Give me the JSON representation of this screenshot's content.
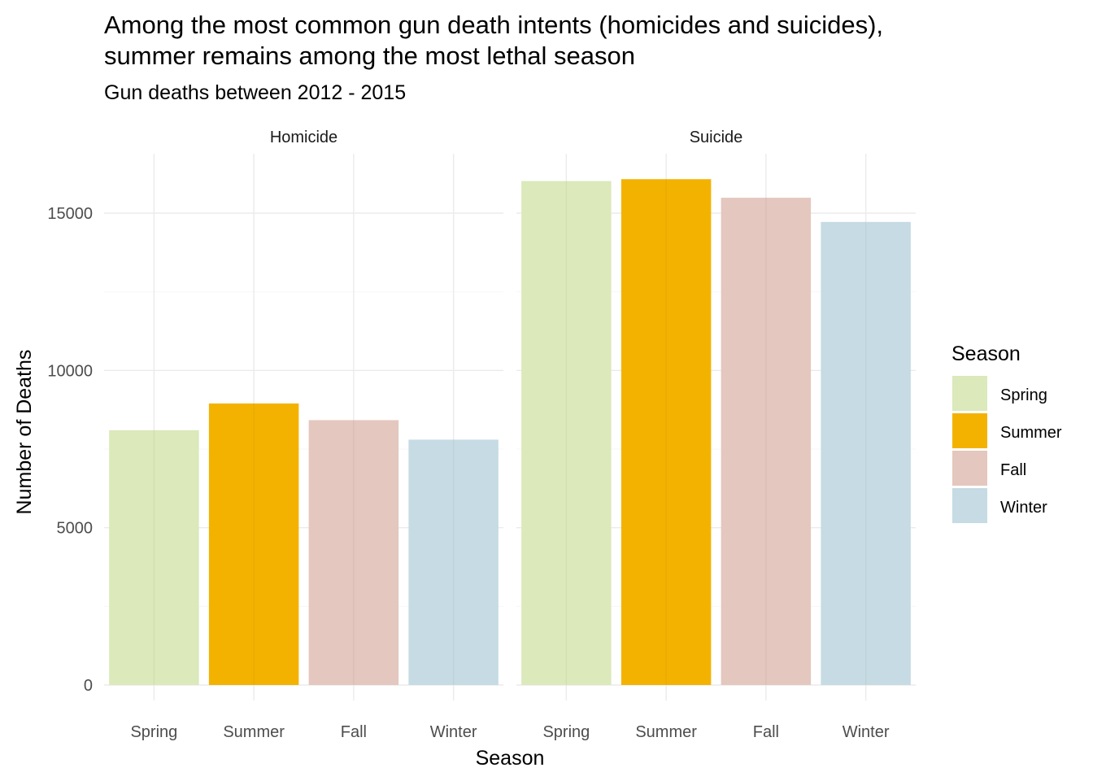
{
  "chart_data": {
    "type": "bar",
    "title_lines": [
      "Among the most common gun death intents (homicides and suicides),",
      "summer remains among the most lethal season"
    ],
    "subtitle": "Gun deaths between 2012 - 2015",
    "xlabel": "Season",
    "ylabel": "Number of Deaths",
    "ylim": [
      0,
      17000
    ],
    "yticks": [
      0,
      5000,
      10000,
      15000
    ],
    "grid": true,
    "legend": {
      "title": "Season",
      "position": "right",
      "entries": [
        "Spring",
        "Summer",
        "Fall",
        "Winter"
      ]
    },
    "categories": [
      "Spring",
      "Summer",
      "Fall",
      "Winter"
    ],
    "colors": {
      "Spring": "#dbe9bb",
      "Summer": "#f4b200",
      "Fall": "#e4c7be",
      "Winter": "#c6dbe3"
    },
    "facets": [
      {
        "name": "Homicide",
        "values": [
          8100,
          8950,
          8420,
          7800
        ]
      },
      {
        "name": "Suicide",
        "values": [
          16020,
          16080,
          15490,
          14720
        ]
      }
    ]
  }
}
